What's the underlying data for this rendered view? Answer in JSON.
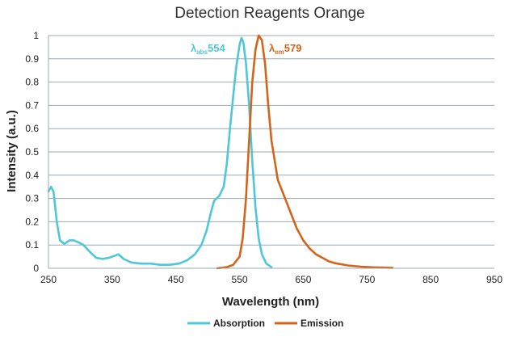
{
  "chart_data": {
    "type": "line",
    "title": "Detection Reagents Orange",
    "xlabel": "Wavelength (nm)",
    "ylabel": "Intensity (a.u.)",
    "xlim": [
      250,
      950
    ],
    "ylim": [
      0,
      1
    ],
    "xticks": [
      250,
      350,
      450,
      550,
      650,
      750,
      850,
      950
    ],
    "yticks": [
      0,
      0.1,
      0.2,
      0.3,
      0.4,
      0.5,
      0.6,
      0.7,
      0.8,
      0.9,
      1
    ],
    "grid": "horizontal",
    "legend_position": "bottom",
    "annotations": [
      {
        "symbol": "λ",
        "sub": "abs",
        "value": "554",
        "color": "#4fc7d8"
      },
      {
        "symbol": "λ",
        "sub": "em",
        "value": "579",
        "color": "#d2651a"
      }
    ],
    "series": [
      {
        "name": "Absorption",
        "color": "#4fc7d8",
        "points": [
          [
            250,
            0.33
          ],
          [
            254,
            0.35
          ],
          [
            258,
            0.33
          ],
          [
            263,
            0.2
          ],
          [
            268,
            0.12
          ],
          [
            275,
            0.105
          ],
          [
            283,
            0.12
          ],
          [
            290,
            0.12
          ],
          [
            298,
            0.11
          ],
          [
            305,
            0.1
          ],
          [
            315,
            0.07
          ],
          [
            325,
            0.045
          ],
          [
            335,
            0.04
          ],
          [
            345,
            0.045
          ],
          [
            355,
            0.055
          ],
          [
            360,
            0.06
          ],
          [
            368,
            0.04
          ],
          [
            380,
            0.025
          ],
          [
            395,
            0.02
          ],
          [
            410,
            0.02
          ],
          [
            425,
            0.015
          ],
          [
            440,
            0.015
          ],
          [
            455,
            0.02
          ],
          [
            468,
            0.035
          ],
          [
            480,
            0.06
          ],
          [
            490,
            0.1
          ],
          [
            498,
            0.16
          ],
          [
            505,
            0.24
          ],
          [
            510,
            0.29
          ],
          [
            518,
            0.31
          ],
          [
            525,
            0.35
          ],
          [
            530,
            0.45
          ],
          [
            535,
            0.6
          ],
          [
            540,
            0.74
          ],
          [
            545,
            0.87
          ],
          [
            550,
            0.96
          ],
          [
            553,
            0.99
          ],
          [
            556,
            0.97
          ],
          [
            560,
            0.88
          ],
          [
            565,
            0.7
          ],
          [
            570,
            0.46
          ],
          [
            575,
            0.26
          ],
          [
            580,
            0.13
          ],
          [
            585,
            0.06
          ],
          [
            592,
            0.02
          ],
          [
            600,
            0.005
          ]
        ]
      },
      {
        "name": "Emission",
        "color": "#d2651a",
        "points": [
          [
            515,
            0.0
          ],
          [
            530,
            0.005
          ],
          [
            540,
            0.015
          ],
          [
            550,
            0.05
          ],
          [
            555,
            0.13
          ],
          [
            560,
            0.3
          ],
          [
            565,
            0.55
          ],
          [
            570,
            0.8
          ],
          [
            575,
            0.94
          ],
          [
            580,
            1.0
          ],
          [
            585,
            0.98
          ],
          [
            590,
            0.88
          ],
          [
            595,
            0.7
          ],
          [
            600,
            0.55
          ],
          [
            610,
            0.38
          ],
          [
            620,
            0.31
          ],
          [
            630,
            0.24
          ],
          [
            640,
            0.17
          ],
          [
            650,
            0.12
          ],
          [
            660,
            0.085
          ],
          [
            670,
            0.06
          ],
          [
            680,
            0.045
          ],
          [
            690,
            0.03
          ],
          [
            700,
            0.022
          ],
          [
            720,
            0.012
          ],
          [
            740,
            0.007
          ],
          [
            760,
            0.004
          ],
          [
            790,
            0.002
          ]
        ]
      }
    ]
  }
}
